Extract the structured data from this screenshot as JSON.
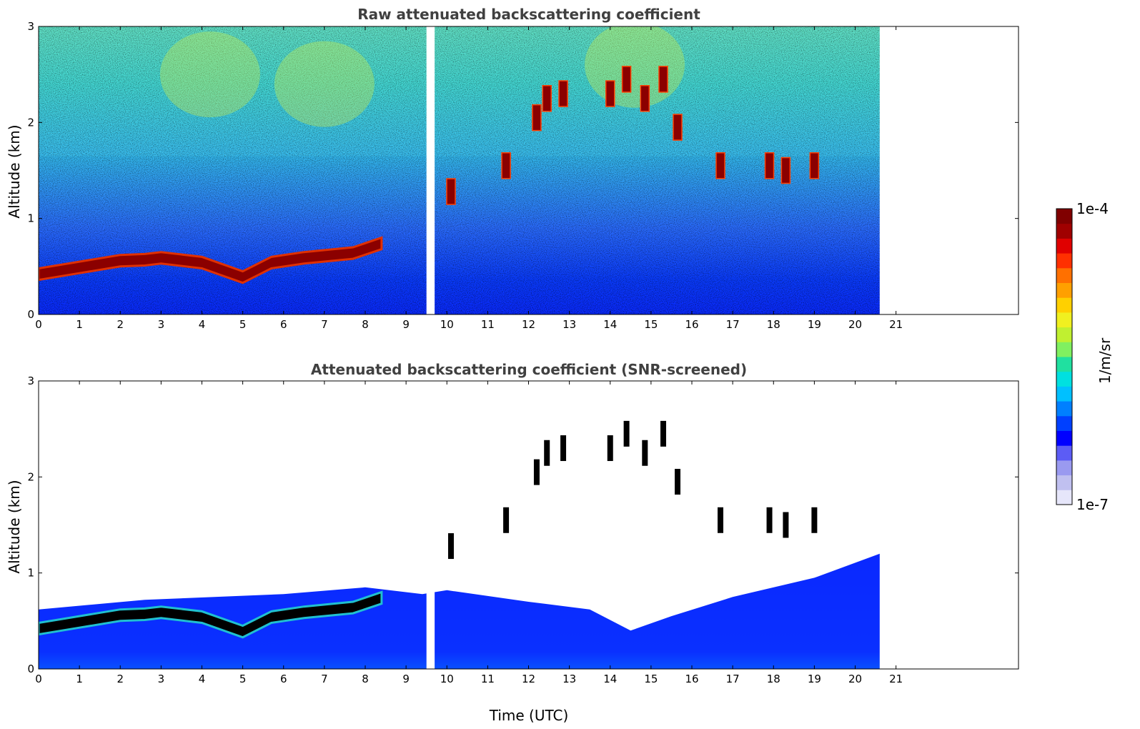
{
  "chart_data": [
    {
      "type": "heatmap",
      "title": "Raw attenuated backscattering coefficient",
      "xlabel": "",
      "ylabel": "Altitude (km)",
      "xlim": [
        0,
        24
      ],
      "ylim": [
        0,
        3
      ],
      "x_ticks": [
        0,
        1,
        2,
        3,
        4,
        5,
        6,
        7,
        8,
        9,
        10,
        11,
        12,
        13,
        14,
        15,
        16,
        17,
        18,
        19,
        20,
        21
      ],
      "y_ticks": [
        0,
        1,
        2,
        3
      ],
      "data_end_time": 20.6,
      "gap": [
        9.5,
        9.7
      ],
      "boundary_layer_top_km": [
        {
          "x": 0,
          "y": 0.48
        },
        {
          "x": 1,
          "y": 0.55
        },
        {
          "x": 2,
          "y": 0.62
        },
        {
          "x": 2.6,
          "y": 0.63
        },
        {
          "x": 3,
          "y": 0.65
        },
        {
          "x": 4,
          "y": 0.6
        },
        {
          "x": 5,
          "y": 0.45
        },
        {
          "x": 5.7,
          "y": 0.6
        },
        {
          "x": 6.5,
          "y": 0.65
        },
        {
          "x": 7.7,
          "y": 0.7
        },
        {
          "x": 8.4,
          "y": 0.8
        }
      ],
      "clouds": [
        {
          "x": 10.1,
          "y": 1.28
        },
        {
          "x": 11.45,
          "y": 1.55
        },
        {
          "x": 12.2,
          "y": 2.05
        },
        {
          "x": 12.45,
          "y": 2.25
        },
        {
          "x": 12.85,
          "y": 2.3
        },
        {
          "x": 14.0,
          "y": 2.3
        },
        {
          "x": 14.4,
          "y": 2.45
        },
        {
          "x": 14.85,
          "y": 2.25
        },
        {
          "x": 15.3,
          "y": 2.45
        },
        {
          "x": 15.65,
          "y": 1.95
        },
        {
          "x": 16.7,
          "y": 1.55
        },
        {
          "x": 17.9,
          "y": 1.55
        },
        {
          "x": 18.3,
          "y": 1.5
        },
        {
          "x": 19.0,
          "y": 1.55
        }
      ]
    },
    {
      "type": "heatmap",
      "title": "Attenuated backscattering coefficient (SNR-screened)",
      "xlabel": "Time (UTC)",
      "ylabel": "Altitude (km)",
      "xlim": [
        0,
        24
      ],
      "ylim": [
        0,
        3
      ],
      "x_ticks": [
        0,
        1,
        2,
        3,
        4,
        5,
        6,
        7,
        8,
        9,
        10,
        11,
        12,
        13,
        14,
        15,
        16,
        17,
        18,
        19,
        20,
        21
      ],
      "y_ticks": [
        0,
        1,
        2,
        3
      ],
      "data_end_time": 20.6,
      "gap": [
        9.5,
        9.7
      ],
      "screened_top_km": [
        {
          "x": 0,
          "y": 0.62
        },
        {
          "x": 2.6,
          "y": 0.72
        },
        {
          "x": 6,
          "y": 0.78
        },
        {
          "x": 8,
          "y": 0.85
        },
        {
          "x": 9.4,
          "y": 0.78
        },
        {
          "x": 10,
          "y": 0.82
        },
        {
          "x": 12,
          "y": 0.7
        },
        {
          "x": 13.5,
          "y": 0.62
        },
        {
          "x": 14.5,
          "y": 0.4
        },
        {
          "x": 15.5,
          "y": 0.55
        },
        {
          "x": 17,
          "y": 0.75
        },
        {
          "x": 19,
          "y": 0.95
        },
        {
          "x": 20.6,
          "y": 1.2
        }
      ]
    }
  ],
  "colorbar": {
    "label": "1/m/sr",
    "max_label": "1e-4",
    "min_label": "1e-7",
    "colors": [
      "#e6e6fa",
      "#c0c0f0",
      "#9a9af0",
      "#5c5cf5",
      "#0000ff",
      "#0040ff",
      "#0080ff",
      "#00c0ff",
      "#00e0e0",
      "#20e0a0",
      "#80f060",
      "#c0f030",
      "#f0f020",
      "#ffd000",
      "#ffa000",
      "#ff7000",
      "#ff3000",
      "#e00000",
      "#a00000",
      "#800000"
    ]
  }
}
